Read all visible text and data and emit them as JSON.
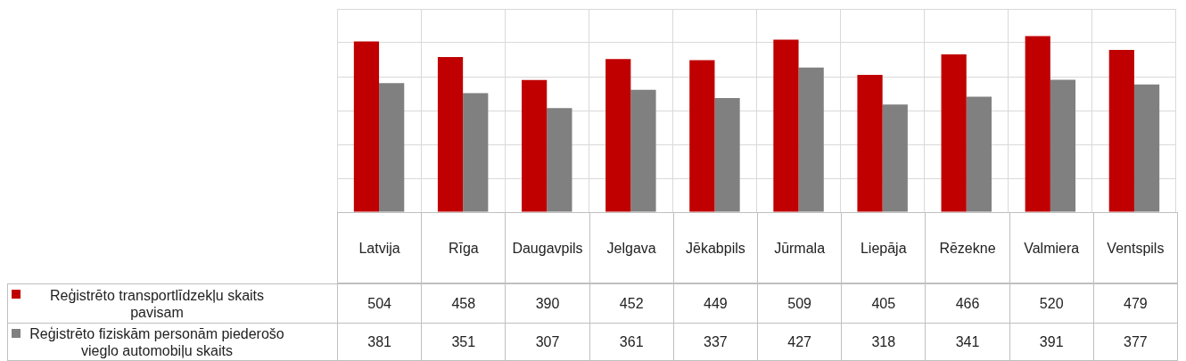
{
  "chart_data": {
    "type": "bar",
    "categories": [
      "Latvija",
      "Rīga",
      "Daugavpils",
      "Jelgava",
      "Jēkabpils",
      "Jūrmala",
      "Liepāja",
      "Rēzekne",
      "Valmiera",
      "Ventspils"
    ],
    "series": [
      {
        "name": "Reģistrēto transportlīdzekļu skaits  pavisam",
        "color": "#c00000",
        "values": [
          504,
          458,
          390,
          452,
          449,
          509,
          405,
          466,
          520,
          479
        ]
      },
      {
        "name": "Reģistrēto fiziskām personām piederošo vieglo automobiļu skaits",
        "color": "#808080",
        "values": [
          381,
          351,
          307,
          361,
          337,
          427,
          318,
          341,
          391,
          377
        ]
      }
    ],
    "tick_labels": false,
    "grid": true,
    "legend": "bottom left",
    "data_labels": true
  }
}
